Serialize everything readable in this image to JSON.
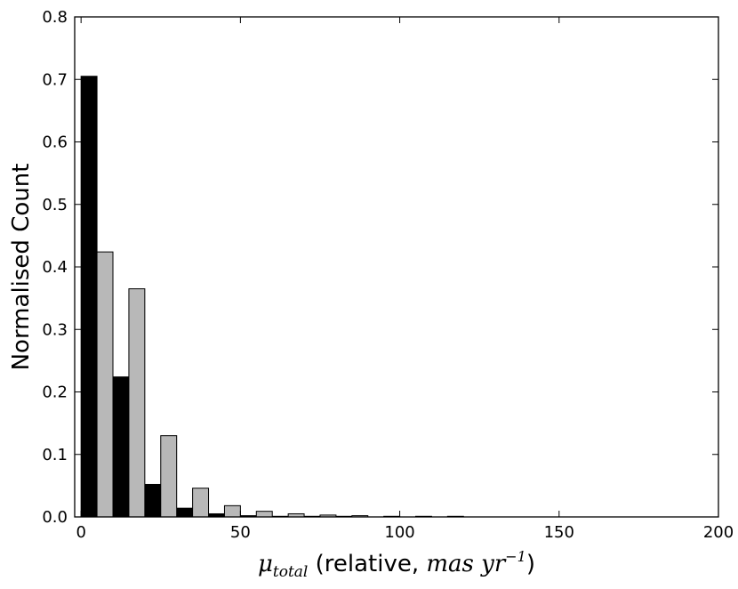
{
  "chart_data": {
    "type": "bar",
    "bin_width": 5,
    "xlim": [
      -2,
      200
    ],
    "ylim": [
      0,
      0.8
    ],
    "xticks": [
      0,
      50,
      100,
      150,
      200
    ],
    "yticks": [
      "0.0",
      "0.1",
      "0.2",
      "0.3",
      "0.4",
      "0.5",
      "0.6",
      "0.7",
      "0.8"
    ],
    "ylabel": "Normalised Count",
    "xlabel": {
      "symbol": "μ",
      "subscript": "total",
      "text": " (relative, ",
      "unit": "mas yr",
      "exponent": "−1",
      "close": ")"
    },
    "series": [
      {
        "color": "#000000",
        "bins": [
          [
            0,
            0.705
          ],
          [
            10,
            0.224
          ],
          [
            20,
            0.052
          ],
          [
            30,
            0.014
          ],
          [
            40,
            0.005
          ],
          [
            50,
            0.002
          ],
          [
            60,
            0.001
          ],
          [
            70,
            0.001
          ],
          [
            80,
            0.001
          ]
        ]
      },
      {
        "color": "#b8b8b8",
        "bins": [
          [
            5,
            0.424
          ],
          [
            15,
            0.365
          ],
          [
            25,
            0.13
          ],
          [
            35,
            0.046
          ],
          [
            45,
            0.018
          ],
          [
            55,
            0.009
          ],
          [
            65,
            0.005
          ],
          [
            75,
            0.003
          ],
          [
            85,
            0.002
          ],
          [
            95,
            0.001
          ],
          [
            105,
            0.001
          ],
          [
            115,
            0.001
          ]
        ]
      }
    ]
  }
}
